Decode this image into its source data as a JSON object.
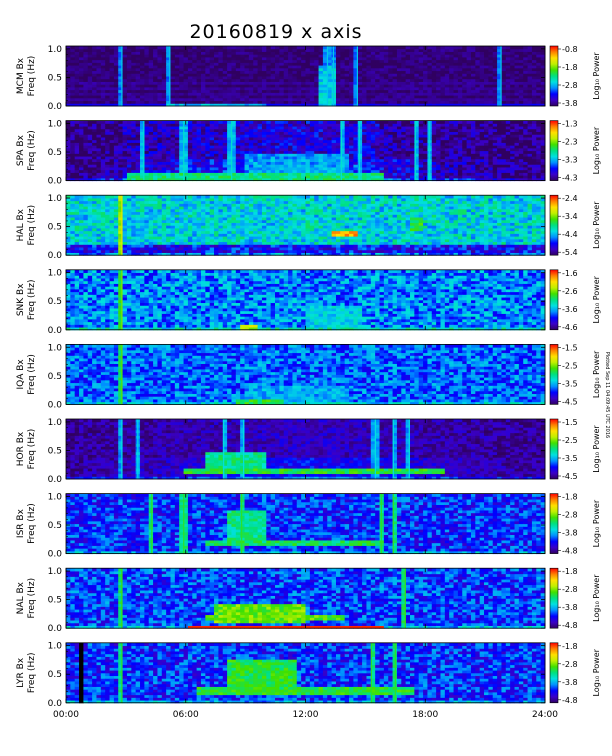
{
  "chart_data": {
    "type": "heatmap",
    "title": "20160819 x axis",
    "side_note": "Plotted Sep 11 04:09:45 UTC 2016",
    "x_axis": {
      "range": [
        0,
        24
      ],
      "ticks": [
        0,
        6,
        12,
        18,
        24
      ],
      "tick_labels": [
        "00:00",
        "06:00",
        "12:00",
        "18:00",
        "24:00"
      ]
    },
    "y_axis": {
      "range": [
        0,
        1.05
      ],
      "ticks": [
        0.0,
        0.5,
        1.0
      ],
      "tick_labels": [
        "0.0",
        "0.5",
        "1.0"
      ],
      "label": "Freq (Hz)"
    },
    "colorbar_label": "Log₁₀ Power",
    "colorscale": [
      "#300060",
      "#3a00c8",
      "#0000ff",
      "#0090ff",
      "#00e0e0",
      "#00e080",
      "#40e000",
      "#c0f000",
      "#ffe000",
      "#ff8000",
      "#ff0000"
    ],
    "panels": [
      {
        "station": "MCM Bx",
        "cbar_ticks": [
          "-0.8",
          "-1.8",
          "-2.8",
          "-3.8"
        ],
        "base": 0.02,
        "noise": 0.1,
        "lines": 0.55,
        "vlines": [
          2.8,
          5.2,
          13.1,
          13.4,
          14.6,
          21.8
        ],
        "features": [
          {
            "t0": 12.6,
            "t1": 13.6,
            "f0": 0.0,
            "f1": 0.7,
            "v": 0.38
          },
          {
            "t0": 5,
            "t1": 10,
            "f0": 0.0,
            "f1": 0.04,
            "v": 0.35
          }
        ]
      },
      {
        "station": "SPA Bx",
        "cbar_ticks": [
          "-1.3",
          "-2.3",
          "-3.3",
          "-4.3"
        ],
        "base": 0.07,
        "noise": 0.22,
        "edges": [
          2.8,
          15.8
        ],
        "mid": 0.2,
        "vlines": [
          3.9,
          5.9,
          8.3,
          13.8,
          14.7,
          17.5,
          18.2
        ],
        "features": [
          {
            "t0": 3,
            "t1": 16,
            "f0": 0.0,
            "f1": 0.12,
            "v": 0.5
          },
          {
            "t0": 9,
            "t1": 14.2,
            "f0": 0.1,
            "f1": 0.5,
            "v": 0.32
          }
        ]
      },
      {
        "station": "HAL Bx",
        "cbar_ticks": [
          "-2.4",
          "-3.4",
          "-4.4",
          "-5.4"
        ],
        "base": 0.4,
        "noise": 0.25,
        "lowband": 0.22,
        "vlines": [
          2.8
        ],
        "features": [
          {
            "t0": 13.3,
            "t1": 14.6,
            "f0": 0.34,
            "f1": 0.44,
            "v": 0.85
          },
          {
            "t0": 17.2,
            "t1": 17.8,
            "f0": 0.45,
            "f1": 0.65,
            "v": 0.55
          }
        ]
      },
      {
        "station": "SNK Bx",
        "cbar_ticks": [
          "-1.6",
          "-2.6",
          "-3.6",
          "-4.6"
        ],
        "base": 0.3,
        "noise": 0.25,
        "vlines": [
          2.8
        ],
        "features": [
          {
            "t0": 8.7,
            "t1": 9.6,
            "f0": 0.0,
            "f1": 0.1,
            "v": 0.7
          },
          {
            "t0": 12,
            "t1": 14.8,
            "f0": 0.0,
            "f1": 0.45,
            "v": 0.38
          }
        ]
      },
      {
        "station": "IQA Bx",
        "cbar_ticks": [
          "-1.5",
          "-2.5",
          "-3.5",
          "-4.5"
        ],
        "base": 0.27,
        "noise": 0.22,
        "vlines": [
          2.8
        ],
        "features": [
          {
            "t0": 8.5,
            "t1": 11,
            "f0": 0.0,
            "f1": 0.1,
            "v": 0.55
          },
          {
            "t0": 9,
            "t1": 14,
            "f0": 0.0,
            "f1": 0.35,
            "v": 0.33
          }
        ]
      },
      {
        "station": "HOR Bx",
        "cbar_ticks": [
          "-1.5",
          "-2.5",
          "-3.5",
          "-4.5"
        ],
        "base": 0.05,
        "noise": 0.14,
        "mid": 0.14,
        "vlines": [
          2.8,
          3.6,
          7.9,
          8.9,
          15.5,
          16.4,
          17.2
        ],
        "features": [
          {
            "t0": 6,
            "t1": 19,
            "f0": 0.1,
            "f1": 0.2,
            "v": 0.55
          },
          {
            "t0": 7,
            "t1": 10,
            "f0": 0.15,
            "f1": 0.5,
            "v": 0.48
          }
        ]
      },
      {
        "station": "ISR Bx",
        "cbar_ticks": [
          "-1.8",
          "-2.8",
          "-3.8",
          "-4.8"
        ],
        "base": 0.22,
        "noise": 0.23,
        "vlines": [
          4.3,
          5.9,
          8.8,
          15.8,
          16.4
        ],
        "features": [
          {
            "t0": 7,
            "t1": 16,
            "f0": 0.12,
            "f1": 0.25,
            "v": 0.52
          },
          {
            "t0": 8,
            "t1": 10,
            "f0": 0.2,
            "f1": 0.75,
            "v": 0.48
          }
        ]
      },
      {
        "station": "NAL Bx",
        "cbar_ticks": [
          "-1.8",
          "-2.8",
          "-3.8",
          "-4.8"
        ],
        "base": 0.24,
        "noise": 0.24,
        "redline": 0.02,
        "vlines": [
          2.8,
          17.0
        ],
        "features": [
          {
            "t0": 7.5,
            "t1": 12,
            "f0": 0.1,
            "f1": 0.45,
            "v": 0.62
          },
          {
            "t0": 7,
            "t1": 14,
            "f0": 0.15,
            "f1": 0.25,
            "v": 0.6
          }
        ]
      },
      {
        "station": "LYR Bx",
        "cbar_ticks": [
          "-1.8",
          "-2.8",
          "-3.8",
          "-4.8"
        ],
        "base": 0.22,
        "noise": 0.24,
        "gap": [
          0.55,
          0.85
        ],
        "vlines": [
          2.8,
          15.3,
          16.5
        ],
        "features": [
          {
            "t0": 6.5,
            "t1": 17.5,
            "f0": 0.12,
            "f1": 0.28,
            "v": 0.55
          },
          {
            "t0": 8,
            "t1": 11.5,
            "f0": 0.15,
            "f1": 0.75,
            "v": 0.55
          }
        ]
      }
    ]
  }
}
